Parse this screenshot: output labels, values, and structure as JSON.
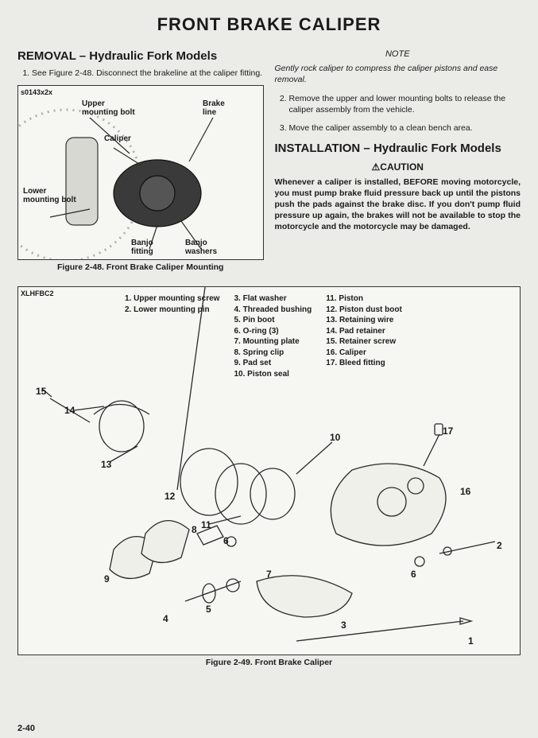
{
  "title": "FRONT BRAKE CALIPER",
  "left": {
    "heading": "REMOVAL – Hydraulic Fork Models",
    "step1": "See Figure 2-48. Disconnect the brakeline at the caliper fitting."
  },
  "right": {
    "noteLabel": "NOTE",
    "noteBody": "Gently rock caliper to compress the caliper pistons and ease removal.",
    "step2": "Remove the upper and lower mounting bolts to release the caliper assembly from the vehicle.",
    "step3": "Move the caliper assembly to a clean bench area.",
    "installHeading": "INSTALLATION – Hydraulic Fork Models",
    "cautionLabel": "CAUTION",
    "cautionBody": "Whenever a caliper is installed, BEFORE moving motorcycle, you must pump brake fluid pressure back up until the pistons push the pads against the brake disc. If you don't pump fluid pressure up again, the brakes will not be available to stop the motorcycle and the motorcycle may be damaged."
  },
  "fig48": {
    "tag": "s0143x2x",
    "caption": "Figure 2-48. Front Brake Caliper Mounting",
    "callouts": {
      "upperBolt": "Upper\nmounting bolt",
      "brakeLine": "Brake\nline",
      "caliper": "Caliper",
      "lowerBolt": "Lower\nmounting bolt",
      "banjoFitting": "Banjo\nfitting",
      "banjoWashers": "Banjo\nwashers"
    }
  },
  "fig49": {
    "tag": "XLHFBC2",
    "caption": "Figure 2-49. Front Brake Caliper",
    "partsCol1": [
      "1.   Upper mounting screw",
      "2.   Lower mounting pin"
    ],
    "partsCol2": [
      "3.   Flat washer",
      "4.   Threaded bushing",
      "5.   Pin boot",
      "6.   O-ring (3)",
      "7.   Mounting plate",
      "8.   Spring clip",
      "9.   Pad set",
      "10.  Piston seal"
    ],
    "partsCol3": [
      "11.  Piston",
      "12.  Piston dust boot",
      "13.  Retaining wire",
      "14.  Pad retainer",
      "15.  Retainer screw",
      "16.  Caliper",
      "17.  Bleed fitting"
    ],
    "nums": [
      "1",
      "2",
      "3",
      "4",
      "5",
      "6",
      "7",
      "8",
      "9",
      "10",
      "11",
      "12",
      "13",
      "14",
      "15",
      "16",
      "17"
    ]
  },
  "pageNumber": "2-40",
  "colors": {
    "pageBg": "#ebebe7",
    "text": "#1a1a1a",
    "border": "#333333",
    "figBg": "#f6f6f2",
    "stroke": "#2a2a2a"
  }
}
